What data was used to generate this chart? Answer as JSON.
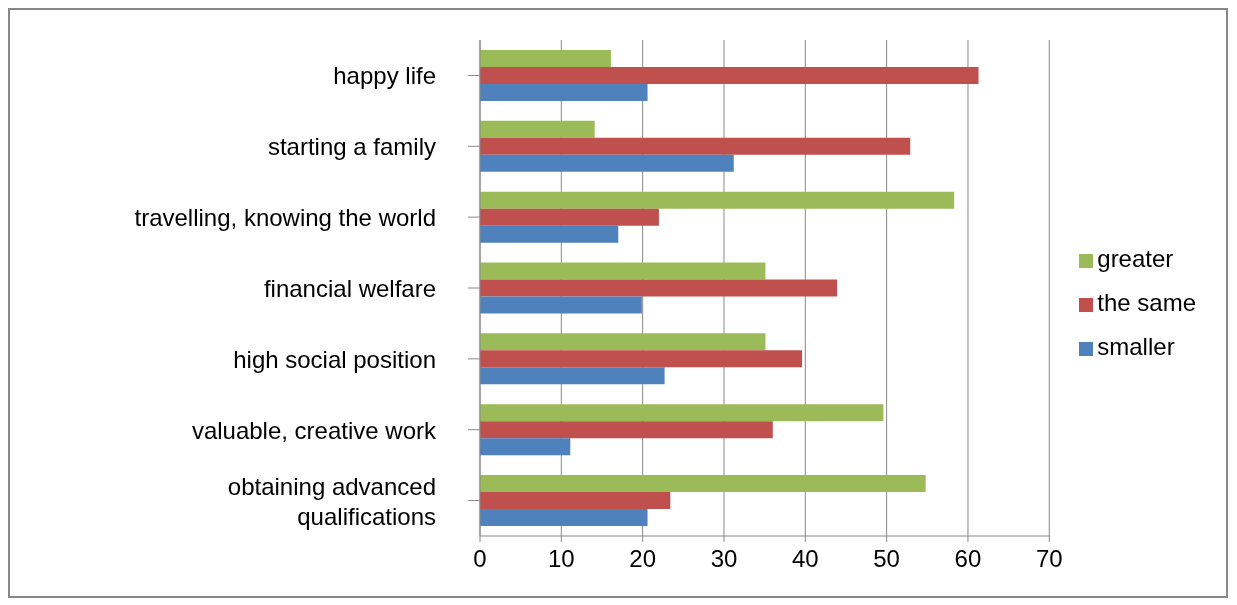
{
  "chart_data": {
    "type": "bar",
    "orientation": "horizontal",
    "categories": [
      "happy life",
      "starting a family",
      "travelling, knowing the world",
      "financial welfare",
      "high social position",
      "valuable, creative work",
      "obtaining advanced qualifications"
    ],
    "series": [
      {
        "name": "greater",
        "color": "#9bbb59",
        "values": [
          16.1,
          14.1,
          58.3,
          35.1,
          35.1,
          49.6,
          54.8
        ]
      },
      {
        "name": "the same",
        "color": "#c0504d",
        "values": [
          61.3,
          52.9,
          22.0,
          43.9,
          39.6,
          36.0,
          23.4
        ]
      },
      {
        "name": "smaller",
        "color": "#4f81bd",
        "values": [
          20.6,
          31.2,
          17.0,
          19.9,
          22.7,
          11.1,
          20.6
        ]
      }
    ],
    "xlim": [
      0,
      70
    ],
    "xticks": [
      0,
      10,
      20,
      30,
      40,
      50,
      60,
      70
    ],
    "grid": "x",
    "legend": "right"
  }
}
